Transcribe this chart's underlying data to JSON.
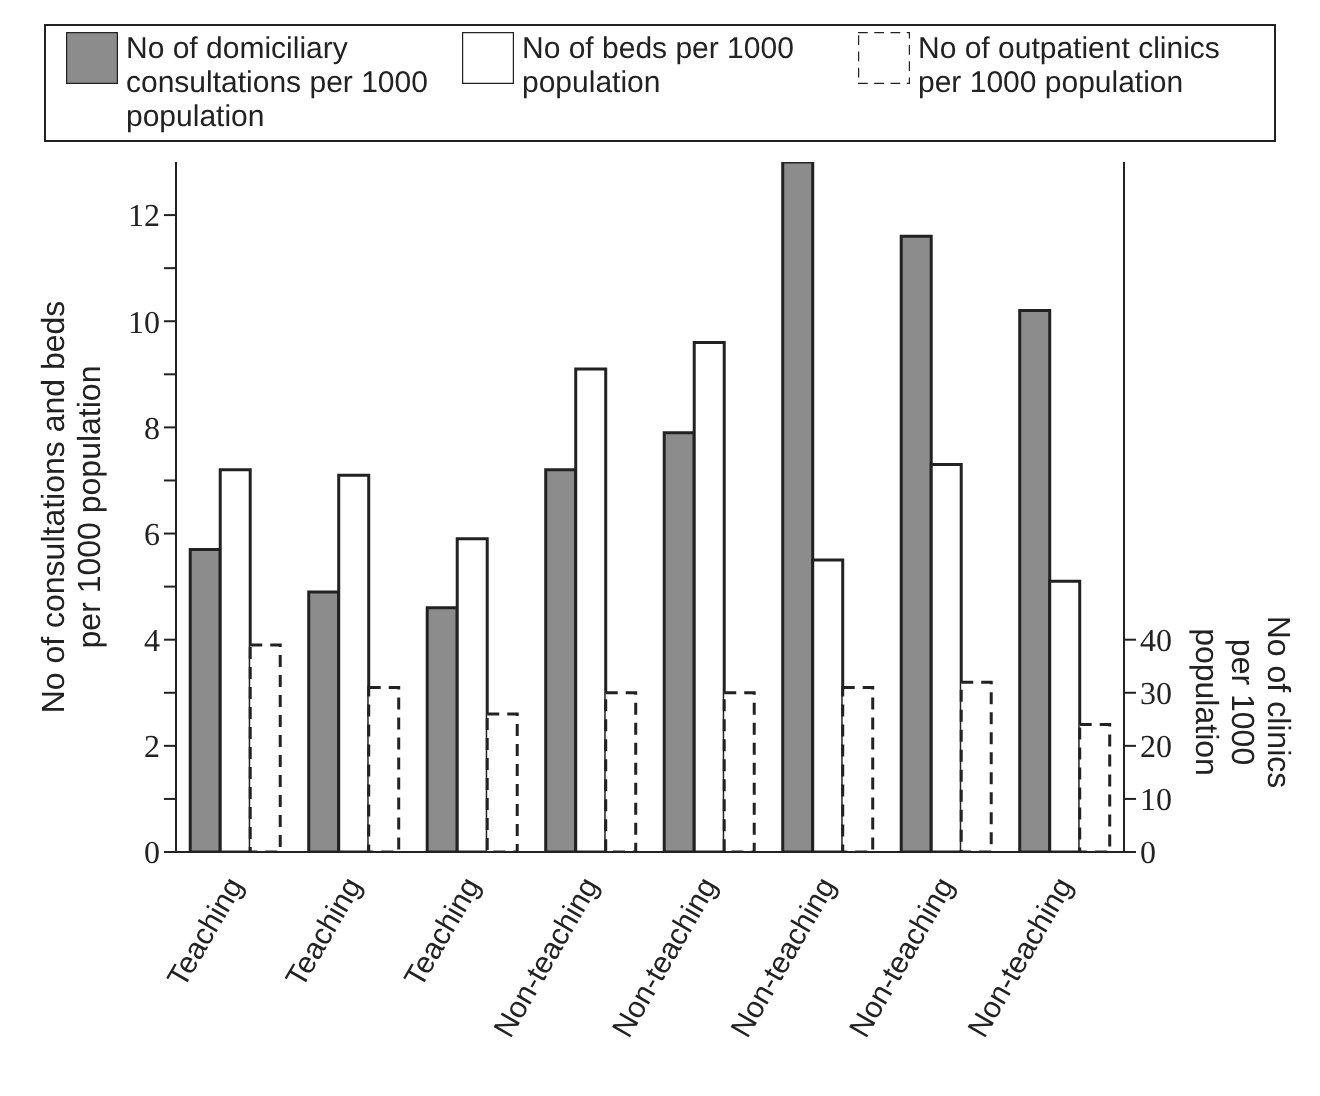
{
  "chart_data": {
    "type": "bar",
    "categories": [
      "Teaching",
      "Teaching",
      "Teaching",
      "Non-teaching",
      "Non-teaching",
      "Non-teaching",
      "Non-teaching",
      "Non-teaching"
    ],
    "series": [
      {
        "name": "No of domiciliary consultations per 1000 population",
        "color": "#8c8c8c",
        "values": [
          5.7,
          4.9,
          4.6,
          7.2,
          7.9,
          13.0,
          11.6,
          10.2
        ]
      },
      {
        "name": "No of beds per 1000 population",
        "color": "#ffffff",
        "values": [
          7.2,
          7.1,
          5.9,
          9.1,
          9.6,
          5.5,
          7.3,
          5.1
        ]
      },
      {
        "name": "No of outpatient clinics per 1000 population",
        "color": "#ffffff",
        "line_style": "dashed",
        "axis": "y2",
        "values": [
          39,
          31,
          26,
          30,
          30,
          31,
          32,
          24
        ]
      }
    ],
    "ylabel": "No of consultations and beds per 1000 population",
    "y2label": "No of clinics per 1000 population",
    "ylim": [
      0,
      13
    ],
    "yticks": [
      0,
      {
        "value": 1,
        "label": null
      },
      2,
      {
        "value": 3,
        "label": null
      },
      4,
      {
        "value": 5,
        "label": null
      },
      6,
      {
        "value": 7,
        "label": null
      },
      8,
      {
        "value": 9,
        "label": null
      },
      10,
      {
        "value": 11,
        "label": null
      },
      12
    ],
    "y2lim": [
      0,
      130
    ],
    "y2ticks": [
      0,
      10,
      20,
      30,
      40
    ],
    "legend": "top",
    "grid": false
  }
}
